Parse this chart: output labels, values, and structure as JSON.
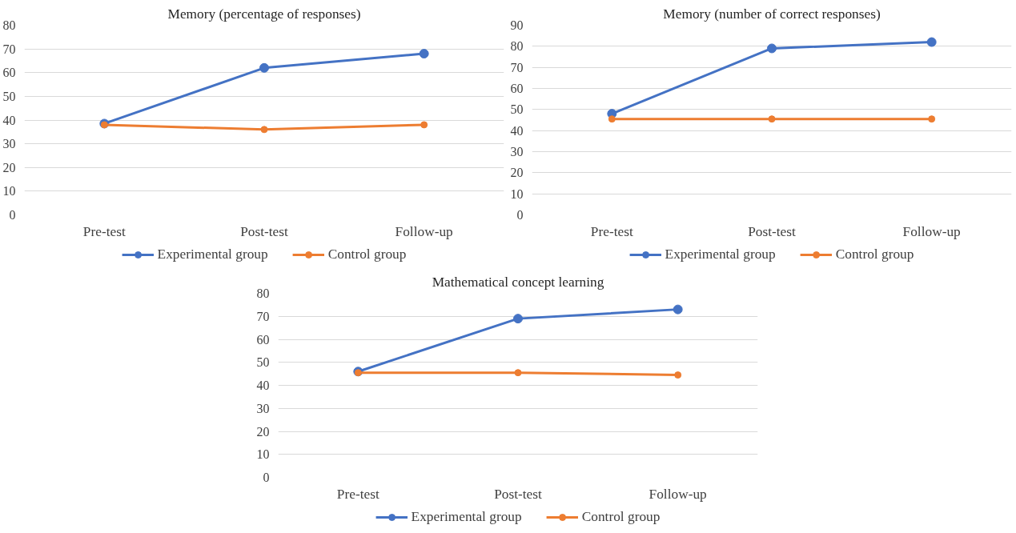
{
  "chart_data": [
    {
      "type": "line",
      "title": "Memory (percentage of responses)",
      "categories": [
        "Pre-test",
        "Post-test",
        "Follow-up"
      ],
      "series": [
        {
          "name": "Experimental group",
          "color": "#4472c4",
          "values": [
            38.5,
            62,
            68
          ]
        },
        {
          "name": "Control group",
          "color": "#ed7d31",
          "values": [
            38,
            36,
            38
          ]
        }
      ],
      "ylim": [
        0,
        80
      ],
      "yticks": [
        0,
        10,
        20,
        30,
        40,
        50,
        60,
        70,
        80
      ],
      "grid": "y",
      "legend": "bottom",
      "marker": "circle",
      "line_style": "solid"
    },
    {
      "type": "line",
      "title": "Memory (number of correct responses)",
      "categories": [
        "Pre-test",
        "Post-test",
        "Follow-up"
      ],
      "series": [
        {
          "name": "Experimental group",
          "color": "#4472c4",
          "values": [
            48,
            79,
            82
          ]
        },
        {
          "name": "Control group",
          "color": "#ed7d31",
          "values": [
            45.5,
            45.5,
            45.5
          ]
        }
      ],
      "ylim": [
        0,
        90
      ],
      "yticks": [
        0,
        10,
        20,
        30,
        40,
        50,
        60,
        70,
        80,
        90
      ],
      "grid": "y",
      "legend": "bottom",
      "marker": "circle",
      "line_style": "solid"
    },
    {
      "type": "line",
      "title": "Mathematical concept learning",
      "categories": [
        "Pre-test",
        "Post-test",
        "Follow-up"
      ],
      "series": [
        {
          "name": "Experimental group",
          "color": "#4472c4",
          "values": [
            46,
            69,
            73
          ]
        },
        {
          "name": "Control group",
          "color": "#ed7d31",
          "values": [
            45.5,
            45.5,
            44.5
          ]
        }
      ],
      "ylim": [
        0,
        80
      ],
      "yticks": [
        0,
        10,
        20,
        30,
        40,
        50,
        60,
        70,
        80
      ],
      "grid": "y",
      "legend": "bottom",
      "marker": "circle",
      "line_style": "solid"
    }
  ]
}
